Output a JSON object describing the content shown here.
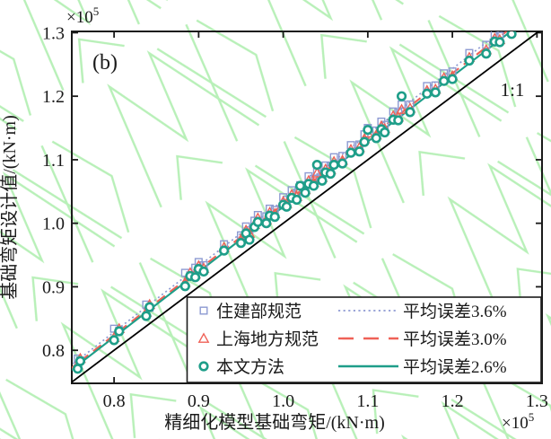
{
  "figure": {
    "panel_label": "(b)",
    "diagonal_label": "1:1"
  },
  "colors": {
    "watermark": "#b8f0b8",
    "frame": "#1a1a1a",
    "diagonal": "#000000",
    "series_square": "#8d9ad2",
    "series_triangle": "#ef6157",
    "series_circle": "#1e9e89",
    "legend_background": "#ffffff"
  },
  "axes": {
    "x": {
      "label": "精细化模型基础弯矩/(kN·m)",
      "offset_base": "×10",
      "offset_exp": "5",
      "tick_labels": [
        "0.8",
        "0.9",
        "1.0",
        "1.1",
        "1.2",
        "1.3"
      ],
      "tick_values": [
        0.8,
        0.9,
        1.0,
        1.1,
        1.2,
        1.3
      ]
    },
    "y": {
      "label": "基础弯矩设计值/(kN·m)",
      "offset_base": "×10",
      "offset_exp": "5",
      "tick_labels": [
        "0.8",
        "0.9",
        "1.0",
        "1.1",
        "1.2",
        "1.3"
      ],
      "tick_values": [
        0.8,
        0.9,
        1.0,
        1.1,
        1.2,
        1.3
      ]
    }
  },
  "legend": {
    "entries": [
      {
        "marker": "square",
        "marker_color": "#8d9ad2",
        "label": "住建部规范",
        "line_style": "dotted",
        "line_color": "#8d9ad2",
        "line_label": "平均误差3.6%"
      },
      {
        "marker": "triangle",
        "marker_color": "#ef6157",
        "label": "上海地方规范",
        "line_style": "dashed",
        "line_color": "#ef6157",
        "line_label": "平均误差3.0%"
      },
      {
        "marker": "circle",
        "marker_color": "#1e9e89",
        "label": "本文方法",
        "line_style": "solid",
        "line_color": "#1e9e89",
        "line_label": "平均误差2.6%"
      }
    ]
  },
  "chart_data": {
    "type": "scatter",
    "title": "",
    "xlabel": "精细化模型基础弯矩/(kN·m)",
    "ylabel": "基础弯矩设计值/(kN·m)",
    "scale_factor": "×10⁵",
    "xlim": [
      0.75,
      1.306
    ],
    "ylim": [
      0.748,
      1.302
    ],
    "grid": false,
    "legend_position": "lower-right-inside",
    "reference_line": {
      "label": "1:1",
      "slope": 1.0,
      "color": "#000000"
    },
    "fit_lines": [
      {
        "name": "住建部规范拟合线",
        "slope": 1.036,
        "mean_error": "3.6%",
        "style": "dotted",
        "color": "#8d9ad2"
      },
      {
        "name": "上海地方规范拟合线",
        "slope": 1.03,
        "mean_error": "3.0%",
        "style": "dashed",
        "color": "#ef6157"
      },
      {
        "name": "本文方法拟合线",
        "slope": 1.026,
        "mean_error": "2.6%",
        "style": "solid",
        "color": "#1e9e89"
      }
    ],
    "series": [
      {
        "name": "住建部规范",
        "marker": "square",
        "color": "#8d9ad2",
        "points": [
          [
            0.757,
            0.787
          ],
          [
            0.76,
            0.784
          ],
          [
            0.8,
            0.834
          ],
          [
            0.806,
            0.831
          ],
          [
            0.838,
            0.872
          ],
          [
            0.842,
            0.867
          ],
          [
            0.884,
            0.922
          ],
          [
            0.89,
            0.918
          ],
          [
            0.896,
            0.93
          ],
          [
            0.9,
            0.939
          ],
          [
            0.906,
            0.934
          ],
          [
            0.93,
            0.967
          ],
          [
            0.95,
            0.981
          ],
          [
            0.956,
            0.995
          ],
          [
            0.96,
            0.989
          ],
          [
            0.966,
            1.004
          ],
          [
            0.97,
            1.013
          ],
          [
            0.98,
            1.011
          ],
          [
            0.984,
            1.023
          ],
          [
            0.99,
            1.021
          ],
          [
            1.0,
            1.041
          ],
          [
            1.004,
            1.037
          ],
          [
            1.01,
            1.052
          ],
          [
            1.016,
            1.048
          ],
          [
            1.02,
            1.06
          ],
          [
            1.026,
            1.059
          ],
          [
            1.03,
            1.074
          ],
          [
            1.036,
            1.07
          ],
          [
            1.04,
            1.081
          ],
          [
            1.046,
            1.078
          ],
          [
            1.05,
            1.091
          ],
          [
            1.056,
            1.09
          ],
          [
            1.06,
            1.104
          ],
          [
            1.07,
            1.106
          ],
          [
            1.08,
            1.123
          ],
          [
            1.09,
            1.124
          ],
          [
            1.096,
            1.14
          ],
          [
            1.1,
            1.15
          ],
          [
            1.11,
            1.146
          ],
          [
            1.116,
            1.16
          ],
          [
            1.12,
            1.155
          ],
          [
            1.13,
            1.176
          ],
          [
            1.136,
            1.174
          ],
          [
            1.14,
            1.187
          ],
          [
            1.15,
            1.187
          ],
          [
            1.17,
            1.216
          ],
          [
            1.18,
            1.217
          ],
          [
            1.19,
            1.236
          ],
          [
            1.2,
            1.239
          ],
          [
            1.22,
            1.268
          ],
          [
            1.24,
            1.281
          ],
          [
            1.25,
            1.298
          ],
          [
            1.256,
            1.295
          ]
        ]
      },
      {
        "name": "上海地方规范",
        "marker": "triangle",
        "color": "#ef6157",
        "points": [
          [
            0.757,
            0.777
          ],
          [
            0.76,
            0.787
          ],
          [
            0.8,
            0.82
          ],
          [
            0.806,
            0.834
          ],
          [
            0.838,
            0.86
          ],
          [
            0.842,
            0.872
          ],
          [
            0.884,
            0.907
          ],
          [
            0.89,
            0.922
          ],
          [
            0.896,
            0.92
          ],
          [
            0.9,
            0.933
          ],
          [
            0.906,
            0.929
          ],
          [
            0.93,
            0.962
          ],
          [
            0.95,
            0.975
          ],
          [
            0.956,
            0.989
          ],
          [
            0.96,
            0.984
          ],
          [
            0.966,
            0.998
          ],
          [
            0.97,
            1.008
          ],
          [
            0.98,
            1.005
          ],
          [
            0.984,
            1.017
          ],
          [
            0.99,
            1.015
          ],
          [
            1.0,
            1.034
          ],
          [
            1.004,
            1.031
          ],
          [
            1.01,
            1.045
          ],
          [
            1.016,
            1.042
          ],
          [
            1.02,
            1.054
          ],
          [
            1.026,
            1.053
          ],
          [
            1.03,
            1.067
          ],
          [
            1.036,
            1.064
          ],
          [
            1.04,
            1.079
          ],
          [
            1.046,
            1.072
          ],
          [
            1.05,
            1.085
          ],
          [
            1.056,
            1.084
          ],
          [
            1.06,
            1.097
          ],
          [
            1.07,
            1.099
          ],
          [
            1.08,
            1.116
          ],
          [
            1.09,
            1.119
          ],
          [
            1.096,
            1.133
          ],
          [
            1.1,
            1.142
          ],
          [
            1.11,
            1.139
          ],
          [
            1.116,
            1.153
          ],
          [
            1.12,
            1.149
          ],
          [
            1.13,
            1.169
          ],
          [
            1.136,
            1.167
          ],
          [
            1.14,
            1.179
          ],
          [
            1.15,
            1.181
          ],
          [
            1.17,
            1.209
          ],
          [
            1.18,
            1.211
          ],
          [
            1.19,
            1.229
          ],
          [
            1.2,
            1.232
          ],
          [
            1.22,
            1.261
          ],
          [
            1.24,
            1.273
          ],
          [
            1.25,
            1.291
          ],
          [
            1.256,
            1.289
          ]
        ]
      },
      {
        "name": "本文方法",
        "marker": "circle",
        "color": "#1e9e89",
        "points": [
          [
            0.757,
            0.771
          ],
          [
            0.76,
            0.783
          ],
          [
            0.8,
            0.816
          ],
          [
            0.806,
            0.83
          ],
          [
            0.838,
            0.854
          ],
          [
            0.842,
            0.868
          ],
          [
            0.884,
            0.901
          ],
          [
            0.89,
            0.917
          ],
          [
            0.896,
            0.915
          ],
          [
            0.9,
            0.928
          ],
          [
            0.906,
            0.924
          ],
          [
            0.93,
            0.957
          ],
          [
            0.95,
            0.969
          ],
          [
            0.956,
            0.984
          ],
          [
            0.96,
            0.974
          ],
          [
            0.966,
            0.994
          ],
          [
            0.97,
            1.002
          ],
          [
            0.98,
            1.0
          ],
          [
            0.984,
            1.012
          ],
          [
            0.99,
            1.01
          ],
          [
            1.0,
            1.029
          ],
          [
            1.004,
            1.026
          ],
          [
            1.01,
            1.04
          ],
          [
            1.016,
            1.037
          ],
          [
            1.02,
            1.059
          ],
          [
            1.026,
            1.048
          ],
          [
            1.03,
            1.062
          ],
          [
            1.036,
            1.059
          ],
          [
            1.04,
            1.092
          ],
          [
            1.046,
            1.067
          ],
          [
            1.05,
            1.08
          ],
          [
            1.056,
            1.078
          ],
          [
            1.06,
            1.092
          ],
          [
            1.07,
            1.094
          ],
          [
            1.08,
            1.111
          ],
          [
            1.09,
            1.113
          ],
          [
            1.096,
            1.128
          ],
          [
            1.1,
            1.147
          ],
          [
            1.11,
            1.134
          ],
          [
            1.116,
            1.148
          ],
          [
            1.12,
            1.143
          ],
          [
            1.13,
            1.163
          ],
          [
            1.136,
            1.162
          ],
          [
            1.14,
            1.2
          ],
          [
            1.15,
            1.175
          ],
          [
            1.17,
            1.204
          ],
          [
            1.18,
            1.206
          ],
          [
            1.19,
            1.224
          ],
          [
            1.2,
            1.227
          ],
          [
            1.22,
            1.256
          ],
          [
            1.24,
            1.267
          ],
          [
            1.25,
            1.286
          ],
          [
            1.256,
            1.285
          ],
          [
            1.27,
            1.298
          ]
        ]
      }
    ]
  }
}
